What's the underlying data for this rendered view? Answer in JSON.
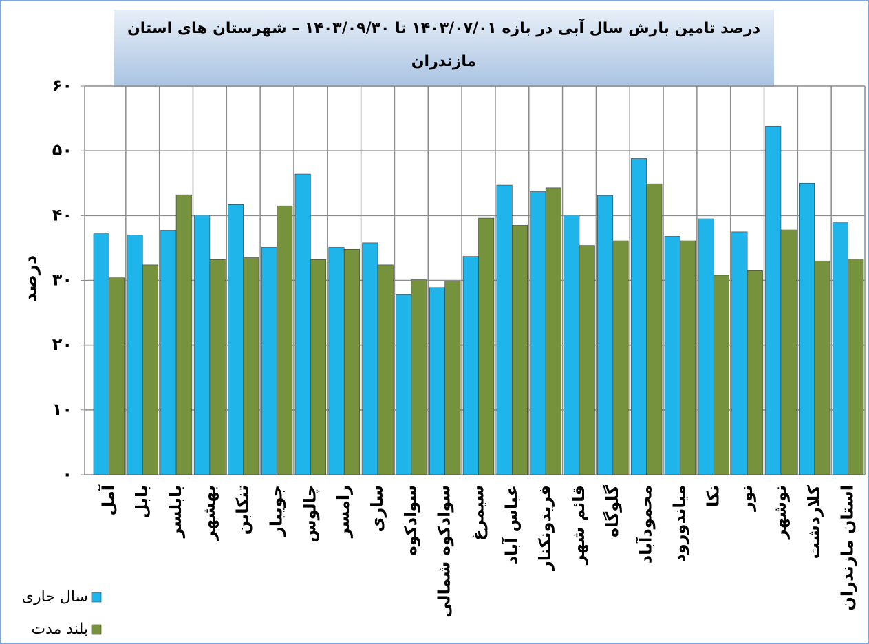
{
  "chart_data": {
    "type": "bar",
    "title": "درصد تامین بارش سال آبی در بازه ۱۴۰۳/۰۷/۰۱ تا ۱۴۰۳/۰۹/۳۰ – شهرستان های استان مازندران",
    "y_label": "درصد",
    "categories": [
      "آمل",
      "بابل",
      "بابلسر",
      "بهشهر",
      "تنکابن",
      "جویبار",
      "چالوس",
      "رامسر",
      "ساری",
      "سوادکوه",
      "سوادکوه شمالی",
      "سیمرغ",
      "عباس آباد",
      "فریدونکنار",
      "قائم شهر",
      "گلوگاه",
      "محمودآباد",
      "میاندورود",
      "نکا",
      "نور",
      "نوشهر",
      "کلاردشت",
      "استان مازندران"
    ],
    "series": [
      {
        "name": "سال جاری",
        "color": "#1fb5ea",
        "values": [
          37.2,
          37.0,
          37.7,
          40.1,
          41.7,
          35.1,
          46.4,
          35.1,
          35.8,
          27.8,
          28.9,
          33.7,
          44.7,
          43.7,
          40.1,
          43.1,
          48.8,
          36.8,
          39.5,
          37.5,
          53.8,
          45.0,
          39.0
        ]
      },
      {
        "name": "بلند مدت",
        "color": "#77923c",
        "values": [
          30.4,
          32.4,
          43.2,
          33.2,
          33.5,
          41.5,
          33.2,
          34.8,
          32.4,
          30.1,
          29.9,
          39.6,
          38.5,
          44.3,
          35.4,
          36.1,
          44.9,
          36.1,
          30.8,
          31.5,
          37.8,
          33.0,
          33.3
        ]
      }
    ],
    "ylim": [
      0,
      60
    ],
    "yticks": [
      {
        "value": 0,
        "label": "۰"
      },
      {
        "value": 10,
        "label": "۱۰"
      },
      {
        "value": 20,
        "label": "۲۰"
      },
      {
        "value": 30,
        "label": "۳۰"
      },
      {
        "value": 40,
        "label": "۴۰"
      },
      {
        "value": 50,
        "label": "۵۰"
      },
      {
        "value": 60,
        "label": "۶۰"
      }
    ],
    "grid": true,
    "legend": "bottom-left"
  }
}
